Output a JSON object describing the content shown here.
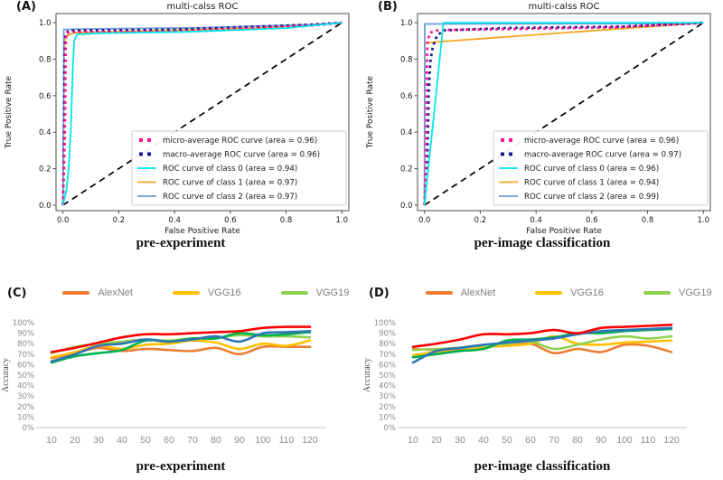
{
  "panels": {
    "a": {
      "label": "(A)",
      "caption": "pre-experiment"
    },
    "b": {
      "label": "(B)",
      "caption": "per-image classification"
    },
    "c": {
      "label": "(C)",
      "caption": "pre-experiment"
    },
    "d": {
      "label": "(D)",
      "caption": "per-image classification"
    }
  },
  "chart_data": [
    {
      "id": "a",
      "type": "line",
      "title": "multi-calss ROC",
      "xlabel": "False Positive Rate",
      "ylabel": "True Positive Rate",
      "xlim": [
        0,
        1
      ],
      "ylim": [
        0,
        1
      ],
      "xticks": [
        "0.0",
        "0.2",
        "0.4",
        "0.6",
        "0.8",
        "1.0"
      ],
      "yticks": [
        "0.0",
        "0.2",
        "0.4",
        "0.6",
        "0.8",
        "1.0"
      ],
      "legend_position": "lower right",
      "grid": false,
      "diagonal": {
        "style": "dashed",
        "color": "#000000",
        "points": [
          [
            0,
            0
          ],
          [
            1,
            1
          ]
        ]
      },
      "series": [
        {
          "name": "micro-average ROC curve (area = 0.96)",
          "area": 0.96,
          "color": "#FF1493",
          "style": "dotted",
          "points": [
            [
              0,
              0
            ],
            [
              0.006,
              0.35
            ],
            [
              0.008,
              0.55
            ],
            [
              0.009,
              0.75
            ],
            [
              0.01,
              0.88
            ],
            [
              0.012,
              0.945
            ],
            [
              0.05,
              0.95
            ],
            [
              0.4,
              0.952
            ],
            [
              0.9,
              0.985
            ],
            [
              1,
              1
            ]
          ]
        },
        {
          "name": "macro-average ROC curve (area = 0.96)",
          "area": 0.96,
          "color": "#1A1A8F",
          "style": "dotted",
          "points": [
            [
              0,
              0
            ],
            [
              0.004,
              0.4
            ],
            [
              0.005,
              0.6
            ],
            [
              0.006,
              0.8
            ],
            [
              0.008,
              0.935
            ],
            [
              0.02,
              0.957
            ],
            [
              0.4,
              0.962
            ],
            [
              0.9,
              0.99
            ],
            [
              1,
              1
            ]
          ]
        },
        {
          "name": "ROC curve of class 0 (area = 0.94)",
          "area": 0.94,
          "color": "#00E5EE",
          "style": "solid",
          "points": [
            [
              0,
              0
            ],
            [
              0.012,
              0.08
            ],
            [
              0.02,
              0.2
            ],
            [
              0.028,
              0.42
            ],
            [
              0.032,
              0.6
            ],
            [
              0.036,
              0.78
            ],
            [
              0.04,
              0.9
            ],
            [
              0.05,
              0.935
            ],
            [
              0.12,
              0.942
            ],
            [
              0.45,
              0.95
            ],
            [
              0.8,
              0.97
            ],
            [
              1,
              1
            ]
          ]
        },
        {
          "name": "ROC curve of class 1 (area = 0.97)",
          "area": 0.97,
          "color": "#F5A623",
          "style": "solid",
          "points": [
            [
              0,
              0
            ],
            [
              0.003,
              0.55
            ],
            [
              0.004,
              0.82
            ],
            [
              0.006,
              0.9
            ],
            [
              0.012,
              0.928
            ],
            [
              0.04,
              0.945
            ],
            [
              0.3,
              0.955
            ],
            [
              0.7,
              0.97
            ],
            [
              1,
              1
            ]
          ]
        },
        {
          "name": "ROC curve of class 2 (area = 0.97)",
          "area": 0.97,
          "color": "#6E9BD8",
          "style": "solid",
          "points": [
            [
              0,
              0
            ],
            [
              0.002,
              0.5
            ],
            [
              0.003,
              0.963
            ],
            [
              0.1,
              0.966
            ],
            [
              0.5,
              0.972
            ],
            [
              0.9,
              0.99
            ],
            [
              1,
              1
            ]
          ]
        }
      ]
    },
    {
      "id": "b",
      "type": "line",
      "title": "multi-calss ROC",
      "xlabel": "False Positive Rate",
      "ylabel": "True Positive Rate",
      "xlim": [
        0,
        1
      ],
      "ylim": [
        0,
        1
      ],
      "xticks": [
        "0.0",
        "0.2",
        "0.4",
        "0.6",
        "0.8",
        "1.0"
      ],
      "yticks": [
        "0.0",
        "0.2",
        "0.4",
        "0.6",
        "0.8",
        "1.0"
      ],
      "legend_position": "lower right",
      "grid": false,
      "diagonal": {
        "style": "dashed",
        "color": "#000000",
        "points": [
          [
            0,
            0
          ],
          [
            1,
            1
          ]
        ]
      },
      "series": [
        {
          "name": "micro-average ROC curve (area = 0.96)",
          "area": 0.96,
          "color": "#FF1493",
          "style": "dotted",
          "points": [
            [
              0,
              0
            ],
            [
              0.005,
              0.3
            ],
            [
              0.007,
              0.55
            ],
            [
              0.009,
              0.8
            ],
            [
              0.011,
              0.9
            ],
            [
              0.02,
              0.945
            ],
            [
              0.05,
              0.96
            ],
            [
              0.3,
              0.965
            ],
            [
              0.7,
              0.975
            ],
            [
              0.95,
              0.995
            ],
            [
              1,
              1
            ]
          ]
        },
        {
          "name": "macro-average ROC curve (area = 0.97)",
          "area": 0.97,
          "color": "#1A1A8F",
          "style": "dotted",
          "points": [
            [
              0,
              0
            ],
            [
              0.01,
              0.25
            ],
            [
              0.013,
              0.45
            ],
            [
              0.015,
              0.6
            ],
            [
              0.018,
              0.72
            ],
            [
              0.022,
              0.8
            ],
            [
              0.03,
              0.87
            ],
            [
              0.045,
              0.93
            ],
            [
              0.07,
              0.958
            ],
            [
              0.3,
              0.971
            ],
            [
              0.7,
              0.978
            ],
            [
              0.95,
              0.995
            ],
            [
              1,
              1
            ]
          ]
        },
        {
          "name": "ROC curve of class 0 (area = 0.96)",
          "area": 0.96,
          "color": "#00E5EE",
          "style": "solid",
          "points": [
            [
              0,
              0
            ],
            [
              0.068,
              1.0
            ],
            [
              1,
              1
            ]
          ]
        },
        {
          "name": "ROC curve of class 1 (area = 0.94)",
          "area": 0.94,
          "color": "#F5A623",
          "style": "solid",
          "points": [
            [
              0,
              0
            ],
            [
              0.001,
              0.89
            ],
            [
              1,
              1
            ]
          ]
        },
        {
          "name": "ROC curve of class 2 (area = 0.99)",
          "area": 0.99,
          "color": "#6E9BD8",
          "style": "solid",
          "points": [
            [
              0,
              0
            ],
            [
              0.001,
              0.993
            ],
            [
              0.8,
              0.995
            ],
            [
              1,
              1
            ]
          ]
        }
      ]
    },
    {
      "id": "c",
      "type": "line",
      "title": "",
      "xlabel": "",
      "ylabel": "Accuracy",
      "ylim": [
        0,
        100
      ],
      "grid": false,
      "categories": [
        10,
        20,
        30,
        40,
        50,
        60,
        70,
        80,
        90,
        100,
        110,
        120
      ],
      "yticks": [
        "0%",
        "10%",
        "20%",
        "30%",
        "40%",
        "50%",
        "60%",
        "70%",
        "80%",
        "90%",
        "100%"
      ],
      "legend": [
        {
          "label": "AlexNet",
          "color": "#ED7D31"
        },
        {
          "label": "VGG16",
          "color": "#FFC000"
        },
        {
          "label": "VGG19",
          "color": "#92D050"
        }
      ],
      "series": [
        {
          "name": "AlexNet",
          "color": "#ED7D31",
          "values": [
            66,
            71,
            76,
            73,
            75,
            74,
            73,
            76,
            70,
            77,
            77,
            77
          ]
        },
        {
          "name": "VGG16",
          "color": "#FFC000",
          "values": [
            67,
            72,
            78,
            75,
            79,
            80,
            83,
            81,
            75,
            80,
            78,
            83
          ]
        },
        {
          "name": "VGG19",
          "color": "#92D050",
          "values": [
            71,
            77,
            80,
            82,
            84,
            83,
            85,
            86,
            88,
            87,
            87,
            86
          ]
        },
        {
          "name": "",
          "color": "#00B050",
          "values": [
            62,
            68,
            71,
            74,
            83,
            82,
            85,
            85,
            90,
            88,
            89,
            91
          ]
        },
        {
          "name": "",
          "color": "#2E75B6",
          "values": [
            63,
            70,
            78,
            80,
            84,
            82,
            84,
            87,
            82,
            90,
            91,
            92
          ]
        },
        {
          "name": "",
          "color": "#FF0000",
          "values": [
            72,
            76,
            81,
            86,
            89,
            89,
            90,
            91,
            92,
            95,
            96,
            96
          ]
        }
      ]
    },
    {
      "id": "d",
      "type": "line",
      "title": "",
      "xlabel": "",
      "ylabel": "Accuracy",
      "ylim": [
        0,
        100
      ],
      "grid": false,
      "categories": [
        10,
        20,
        30,
        40,
        50,
        60,
        70,
        80,
        90,
        100,
        110,
        120
      ],
      "yticks": [
        "0%",
        "10%",
        "20%",
        "30%",
        "40%",
        "50%",
        "60%",
        "70%",
        "80%",
        "90%",
        "100%"
      ],
      "legend": [
        {
          "label": "AlexNet",
          "color": "#ED7D31"
        },
        {
          "label": "VGG16",
          "color": "#FFC000"
        },
        {
          "label": "VGG19",
          "color": "#92D050"
        }
      ],
      "series": [
        {
          "name": "AlexNet",
          "color": "#ED7D31",
          "values": [
            75,
            74,
            75,
            77,
            78,
            80,
            71,
            75,
            72,
            79,
            78,
            72
          ]
        },
        {
          "name": "VGG16",
          "color": "#FFC000",
          "values": [
            69,
            72,
            73,
            77,
            78,
            80,
            87,
            80,
            79,
            81,
            82,
            83
          ]
        },
        {
          "name": "VGG19",
          "color": "#92D050",
          "values": [
            74,
            75,
            76,
            78,
            80,
            82,
            75,
            79,
            84,
            87,
            85,
            87
          ]
        },
        {
          "name": "",
          "color": "#00B050",
          "values": [
            67,
            70,
            73,
            75,
            83,
            84,
            86,
            90,
            90,
            92,
            93,
            94
          ]
        },
        {
          "name": "",
          "color": "#2E75B6",
          "values": [
            62,
            73,
            76,
            79,
            81,
            83,
            85,
            89,
            92,
            93,
            94,
            95
          ]
        },
        {
          "name": "",
          "color": "#FF0000",
          "values": [
            77,
            80,
            84,
            89,
            89,
            90,
            93,
            90,
            95,
            96,
            97,
            98
          ]
        }
      ]
    }
  ]
}
